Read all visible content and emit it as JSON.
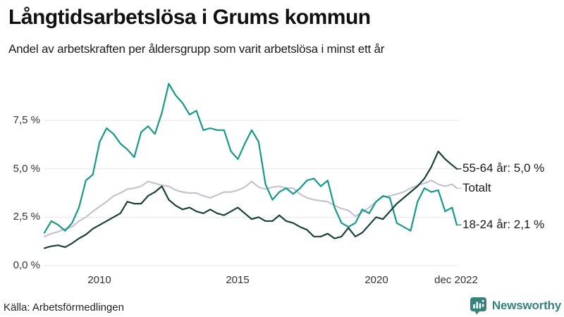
{
  "header": {
    "title": "Långtidsarbetslösa i Grums kommun",
    "subtitle": "Andel av arbetskraften per åldersgrupp som varit arbetslösa i minst ett år"
  },
  "footer": {
    "source": "Källa: Arbetsförmedlingen",
    "brand": "Newsworthy",
    "brand_color": "#37827d"
  },
  "chart_data": {
    "type": "line",
    "title": "Långtidsarbetslösa i Grums kommun",
    "subtitle": "Andel av arbetskraften per åldersgrupp som varit arbetslösa i minst ett år",
    "x_unit": "decimal_year_monthly_series",
    "x_range": [
      "jan 2008",
      "dec 2022"
    ],
    "ylim": [
      0,
      9.8
    ],
    "grid": "horizontal",
    "grid_color": "#e6e6e6",
    "legend_position": "right-of-line-ends",
    "y_axis_ticks": [
      {
        "label": "0,0 %",
        "value": 0.0
      },
      {
        "label": "2,5 %",
        "value": 2.5
      },
      {
        "label": "5,0 %",
        "value": 5.0
      },
      {
        "label": "7,5 %",
        "value": 7.5
      }
    ],
    "x_axis_ticks": [
      {
        "label": "2010",
        "year": 2010
      },
      {
        "label": "2015",
        "year": 2015
      },
      {
        "label": "2020",
        "year": 2020
      },
      {
        "label": "dec 2022",
        "year": 2022.92
      }
    ],
    "x": [
      2008,
      2008.25,
      2008.5,
      2008.75,
      2009,
      2009.25,
      2009.5,
      2009.75,
      2010,
      2010.25,
      2010.5,
      2010.75,
      2011,
      2011.25,
      2011.5,
      2011.75,
      2012,
      2012.25,
      2012.5,
      2012.75,
      2013,
      2013.25,
      2013.5,
      2013.75,
      2014,
      2014.25,
      2014.5,
      2014.75,
      2015,
      2015.25,
      2015.5,
      2015.75,
      2016,
      2016.25,
      2016.5,
      2016.75,
      2017,
      2017.25,
      2017.5,
      2017.75,
      2018,
      2018.25,
      2018.5,
      2018.75,
      2019,
      2019.25,
      2019.5,
      2019.75,
      2020,
      2020.25,
      2020.5,
      2020.75,
      2021,
      2021.25,
      2021.5,
      2021.75,
      2022,
      2022.25,
      2022.5,
      2022.75,
      2022.92
    ],
    "series": [
      {
        "name": "Totalt",
        "color": "#c5c3d1",
        "end_label": "Totalt",
        "end_value": 4.0,
        "values": [
          1.5,
          1.65,
          1.75,
          1.9,
          2.0,
          2.3,
          2.5,
          2.8,
          3.05,
          3.3,
          3.6,
          3.75,
          3.95,
          4.0,
          4.1,
          4.35,
          4.25,
          4.15,
          4.1,
          3.9,
          3.8,
          3.75,
          3.75,
          3.6,
          3.5,
          3.65,
          3.8,
          3.8,
          3.9,
          4.05,
          4.35,
          4.05,
          3.95,
          4.05,
          4.1,
          4.0,
          4.0,
          3.7,
          3.5,
          3.4,
          3.35,
          3.3,
          3.1,
          2.95,
          2.85,
          2.55,
          2.75,
          3.0,
          3.3,
          3.55,
          3.6,
          3.7,
          3.8,
          4.0,
          4.15,
          4.25,
          4.4,
          4.2,
          4.1,
          4.2,
          4.0
        ]
      },
      {
        "name": "18-24 år",
        "color": "#16998a",
        "end_label": "18-24 år: 2,1 %",
        "end_value": 2.1,
        "values": [
          1.7,
          2.3,
          2.1,
          1.8,
          2.2,
          3.0,
          4.4,
          4.7,
          6.4,
          7.1,
          6.8,
          6.3,
          6.0,
          5.6,
          6.9,
          7.2,
          6.8,
          7.9,
          9.4,
          8.8,
          8.4,
          7.8,
          8.0,
          7.0,
          7.1,
          7.0,
          7.0,
          5.9,
          5.5,
          6.3,
          7.0,
          6.4,
          4.2,
          3.4,
          3.8,
          4.0,
          3.7,
          4.0,
          4.4,
          4.5,
          4.1,
          4.4,
          3.0,
          2.2,
          2.0,
          2.2,
          2.9,
          2.7,
          3.3,
          3.6,
          3.5,
          2.2,
          2.0,
          1.8,
          3.3,
          4.0,
          3.8,
          3.9,
          2.8,
          3.0,
          2.1
        ]
      },
      {
        "name": "55-64 år",
        "color": "#1a4138",
        "end_label": "55-64 år: 5,0 %",
        "end_value": 5.0,
        "values": [
          0.9,
          1.0,
          1.05,
          0.95,
          1.15,
          1.4,
          1.6,
          1.9,
          2.1,
          2.3,
          2.5,
          2.7,
          3.3,
          3.2,
          3.2,
          3.6,
          3.8,
          4.1,
          3.4,
          3.1,
          2.9,
          3.0,
          2.8,
          2.7,
          2.9,
          2.7,
          2.6,
          2.8,
          3.0,
          2.7,
          2.4,
          2.5,
          2.3,
          2.3,
          2.6,
          2.3,
          2.2,
          2.0,
          1.85,
          1.5,
          1.5,
          1.65,
          1.4,
          1.5,
          1.95,
          1.5,
          1.7,
          2.1,
          2.5,
          2.4,
          2.8,
          3.2,
          3.5,
          3.8,
          4.1,
          4.5,
          5.1,
          5.9,
          5.5,
          5.2,
          5.0
        ]
      }
    ]
  }
}
